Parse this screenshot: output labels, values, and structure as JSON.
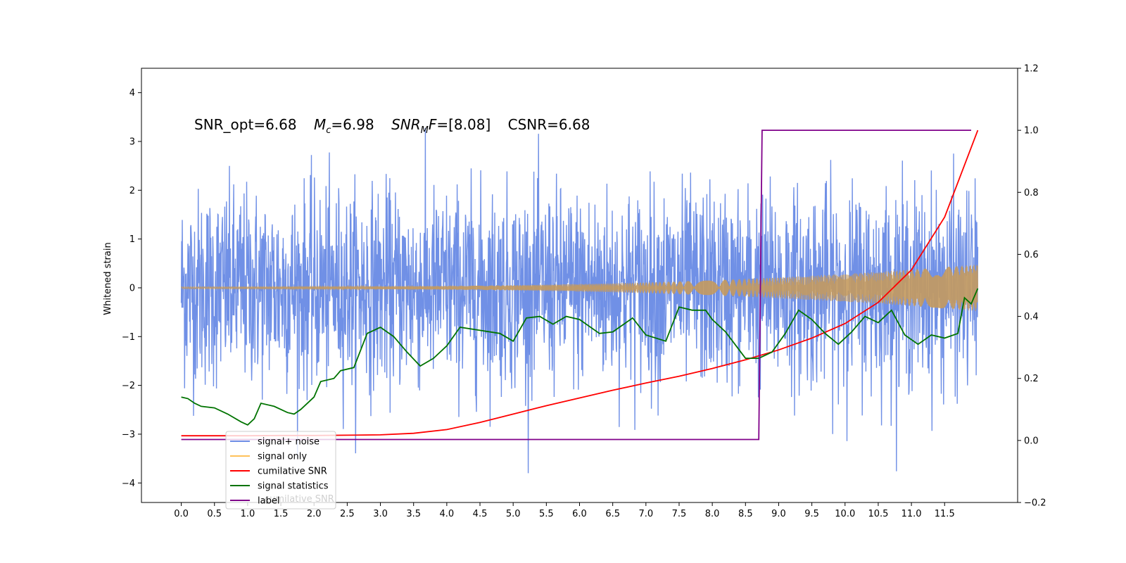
{
  "chart_data": {
    "type": "line",
    "ylabel": "Whitened strain",
    "xlim": [
      -0.6,
      12.6
    ],
    "ylim": [
      -4.4,
      4.5
    ],
    "y2lim": [
      -0.2,
      1.2
    ],
    "x_ticks": [
      "0.0",
      "0.5",
      "1.0",
      "1.5",
      "2.0",
      "2.5",
      "3.0",
      "3.5",
      "4.0",
      "4.5",
      "5.0",
      "5.5",
      "6.0",
      "6.5",
      "7.0",
      "7.5",
      "8.0",
      "8.5",
      "9.0",
      "9.5",
      "10.0",
      "10.5",
      "11.0",
      "11.5"
    ],
    "y_ticks": [
      "4",
      "3",
      "2",
      "1",
      "0",
      "−1",
      "−2",
      "−3",
      "−4"
    ],
    "y2_ticks": [
      "1.2",
      "1.0",
      "0.8",
      "0.6",
      "0.4",
      "0.2",
      "0.0",
      "−0.2"
    ],
    "annotation": {
      "snr_opt": "SNR_opt=6.68",
      "mc_symbol": "M",
      "mc_sub": "c",
      "mc_value": "=6.98",
      "mf_symbol": "SNR",
      "mf_sub": "M",
      "mf_tail": "F",
      "mf_value": "=[8.08]",
      "csnr": "CSNR=6.68"
    },
    "legend": {
      "placement": "lower-left",
      "entries": [
        {
          "label": "signal+ noise",
          "color": "#7090e6"
        },
        {
          "label": "signal only",
          "color": "#ffc25a"
        },
        {
          "label": "cumilative SNR",
          "color": "#ff0000"
        },
        {
          "label": "signal statistics",
          "color": "#007300"
        },
        {
          "label": "label",
          "color": "#80008a"
        }
      ],
      "ghost_text": "cumilative SNR"
    },
    "series": [
      {
        "name": "signal+ noise",
        "axis": "left",
        "kind": "noise",
        "x_range": [
          0,
          12
        ],
        "amplitude": 1.0,
        "color": "#7090e6"
      },
      {
        "name": "signal only",
        "axis": "left",
        "kind": "chirp",
        "x_range": [
          0,
          12
        ],
        "amplitude_start": 0.02,
        "amplitude_end": 0.48,
        "color": "#ffc25a"
      },
      {
        "name": "cumilative SNR",
        "axis": "right",
        "color": "#ff0000",
        "x": [
          0.0,
          0.5,
          1.0,
          1.5,
          2.0,
          2.5,
          3.0,
          3.5,
          4.0,
          4.5,
          5.0,
          5.5,
          6.0,
          6.5,
          7.0,
          7.5,
          8.0,
          8.5,
          9.0,
          9.5,
          10.0,
          10.5,
          11.0,
          11.5,
          12.0
        ],
        "values": [
          0.015,
          0.015,
          0.015,
          0.016,
          0.016,
          0.017,
          0.018,
          0.023,
          0.035,
          0.058,
          0.085,
          0.112,
          0.137,
          0.162,
          0.185,
          0.207,
          0.232,
          0.26,
          0.292,
          0.33,
          0.377,
          0.445,
          0.55,
          0.72,
          1.0
        ]
      },
      {
        "name": "signal statistics",
        "axis": "right",
        "color": "#007300",
        "x": [
          0.0,
          0.1,
          0.2,
          0.3,
          0.5,
          0.7,
          0.9,
          1.0,
          1.1,
          1.2,
          1.4,
          1.6,
          1.7,
          1.8,
          2.0,
          2.1,
          2.3,
          2.4,
          2.6,
          2.8,
          3.0,
          3.2,
          3.4,
          3.6,
          3.8,
          4.0,
          4.2,
          4.5,
          4.8,
          5.0,
          5.2,
          5.4,
          5.6,
          5.8,
          6.0,
          6.3,
          6.5,
          6.8,
          7.0,
          7.3,
          7.5,
          7.7,
          7.9,
          8.0,
          8.2,
          8.5,
          8.7,
          8.9,
          9.1,
          9.3,
          9.5,
          9.7,
          9.9,
          10.1,
          10.3,
          10.5,
          10.7,
          10.9,
          11.1,
          11.3,
          11.5,
          11.7,
          11.8,
          11.9,
          12.0
        ],
        "values": [
          0.14,
          0.135,
          0.12,
          0.11,
          0.105,
          0.085,
          0.06,
          0.05,
          0.07,
          0.12,
          0.11,
          0.09,
          0.085,
          0.1,
          0.14,
          0.19,
          0.2,
          0.225,
          0.235,
          0.345,
          0.365,
          0.335,
          0.285,
          0.24,
          0.265,
          0.305,
          0.365,
          0.355,
          0.345,
          0.32,
          0.395,
          0.4,
          0.375,
          0.4,
          0.39,
          0.345,
          0.35,
          0.395,
          0.34,
          0.32,
          0.43,
          0.42,
          0.42,
          0.39,
          0.35,
          0.265,
          0.265,
          0.285,
          0.345,
          0.42,
          0.39,
          0.345,
          0.31,
          0.35,
          0.4,
          0.38,
          0.42,
          0.34,
          0.31,
          0.34,
          0.33,
          0.345,
          0.46,
          0.44,
          0.49
        ]
      },
      {
        "name": "label",
        "axis": "right",
        "color": "#80008a",
        "x": [
          0.0,
          8.7,
          8.75,
          11.9
        ],
        "values": [
          0.003,
          0.003,
          1.0,
          1.0
        ]
      }
    ]
  }
}
